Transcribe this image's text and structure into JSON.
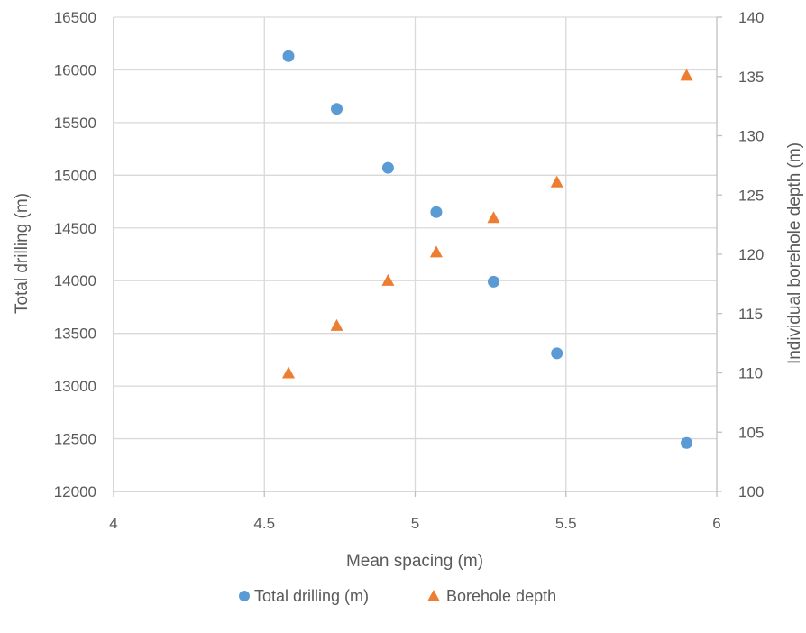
{
  "chart_data": {
    "type": "scatter",
    "xlabel": "Mean spacing (m)",
    "ylabel": "Total drilling (m)",
    "y2label": "Individual borehole depth (m)",
    "xlim": [
      4,
      6
    ],
    "xticks": [
      4,
      4.5,
      5,
      5.5,
      6
    ],
    "ylim": [
      12000,
      16500
    ],
    "yticks": [
      12000,
      12500,
      13000,
      13500,
      14000,
      14500,
      15000,
      15500,
      16000,
      16500
    ],
    "y2lim": [
      100,
      140
    ],
    "y2ticks": [
      100,
      105,
      110,
      115,
      120,
      125,
      130,
      135,
      140
    ],
    "grid": true,
    "legend_position": "bottom",
    "series": [
      {
        "name": "Total drilling (m)",
        "axis": "left",
        "marker": "circle",
        "color": "#5B9BD5",
        "points": [
          {
            "x": 4.58,
            "y": 16130
          },
          {
            "x": 4.74,
            "y": 15630
          },
          {
            "x": 4.91,
            "y": 15070
          },
          {
            "x": 5.07,
            "y": 14650
          },
          {
            "x": 5.26,
            "y": 13990
          },
          {
            "x": 5.47,
            "y": 13310
          },
          {
            "x": 5.9,
            "y": 12460
          }
        ]
      },
      {
        "name": "Borehole depth",
        "axis": "right",
        "marker": "triangle",
        "color": "#ED7D31",
        "points": [
          {
            "x": 4.58,
            "y": 110
          },
          {
            "x": 4.74,
            "y": 114
          },
          {
            "x": 4.91,
            "y": 117.8
          },
          {
            "x": 5.07,
            "y": 120.2
          },
          {
            "x": 5.26,
            "y": 123.1
          },
          {
            "x": 5.47,
            "y": 126.1
          },
          {
            "x": 5.9,
            "y": 135.1
          }
        ]
      }
    ]
  }
}
